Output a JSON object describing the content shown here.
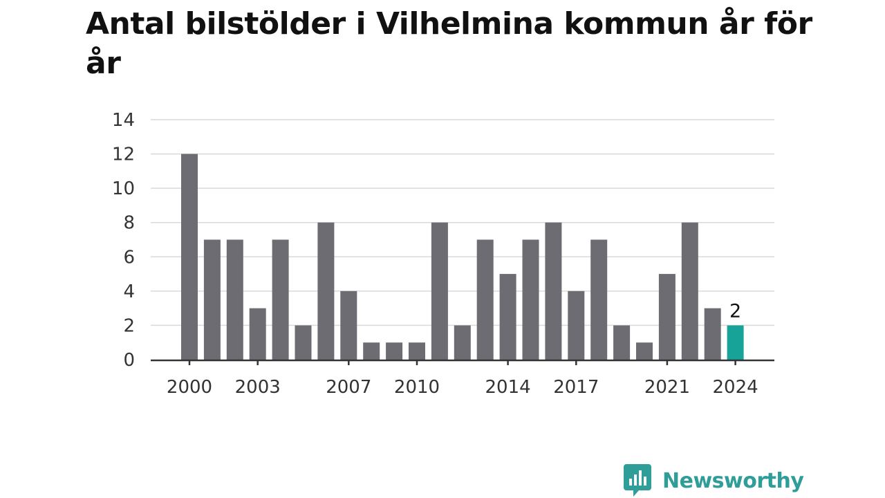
{
  "title": "Antal bilstölder i Vilhelmina kommun år för år",
  "brand": {
    "name": "Newsworthy",
    "icon": "bar-chart-speech-bubble-icon"
  },
  "colors": {
    "bar": "#6d6c72",
    "highlight": "#17a398",
    "grid": "#d9d9d9",
    "axis": "#333333",
    "brand": "#2f9d98"
  },
  "chart_data": {
    "type": "bar",
    "categories": [
      2000,
      2001,
      2002,
      2003,
      2004,
      2005,
      2006,
      2007,
      2008,
      2009,
      2010,
      2011,
      2012,
      2013,
      2014,
      2015,
      2016,
      2017,
      2018,
      2019,
      2020,
      2021,
      2022,
      2023,
      2024
    ],
    "values": [
      12,
      7,
      7,
      3,
      7,
      2,
      8,
      4,
      1,
      1,
      1,
      8,
      2,
      7,
      5,
      7,
      8,
      4,
      7,
      2,
      1,
      5,
      8,
      3,
      2
    ],
    "x_tick_labels": [
      "2000",
      "2003",
      "2007",
      "2010",
      "2014",
      "2017",
      "2021",
      "2024"
    ],
    "y_ticks": [
      0,
      2,
      4,
      6,
      8,
      10,
      12,
      14
    ],
    "ylim": [
      0,
      14
    ],
    "grid": true,
    "highlight": {
      "category": 2024,
      "label": "2"
    },
    "xlabel": "",
    "ylabel": ""
  }
}
